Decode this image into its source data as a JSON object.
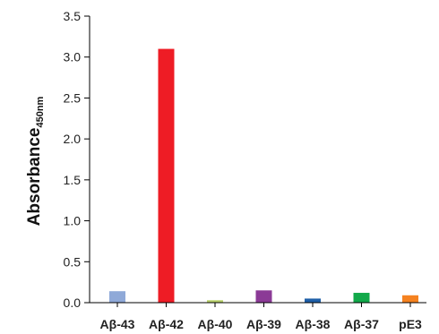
{
  "chart_data": {
    "type": "bar",
    "ylabel": "Absorbance",
    "ylabel_subscript": "450nm",
    "xlabel": "",
    "ylim": [
      0,
      3.5
    ],
    "yticks": [
      "0.0",
      "0.5",
      "1.0",
      "1.5",
      "2.0",
      "2.5",
      "3.0",
      "3.5"
    ],
    "categories": [
      "Aβ-43",
      "Aβ-42",
      "Aβ-40",
      "Aβ-39",
      "Aβ-38",
      "Aβ-37",
      "pE3"
    ],
    "values": [
      0.14,
      3.1,
      0.03,
      0.15,
      0.05,
      0.12,
      0.09
    ],
    "colors": [
      "#8fa9d8",
      "#ee1c25",
      "#b8cf6a",
      "#8b3a96",
      "#1f5fa8",
      "#12a94a",
      "#f58220"
    ],
    "grid": false,
    "legend": "none"
  }
}
